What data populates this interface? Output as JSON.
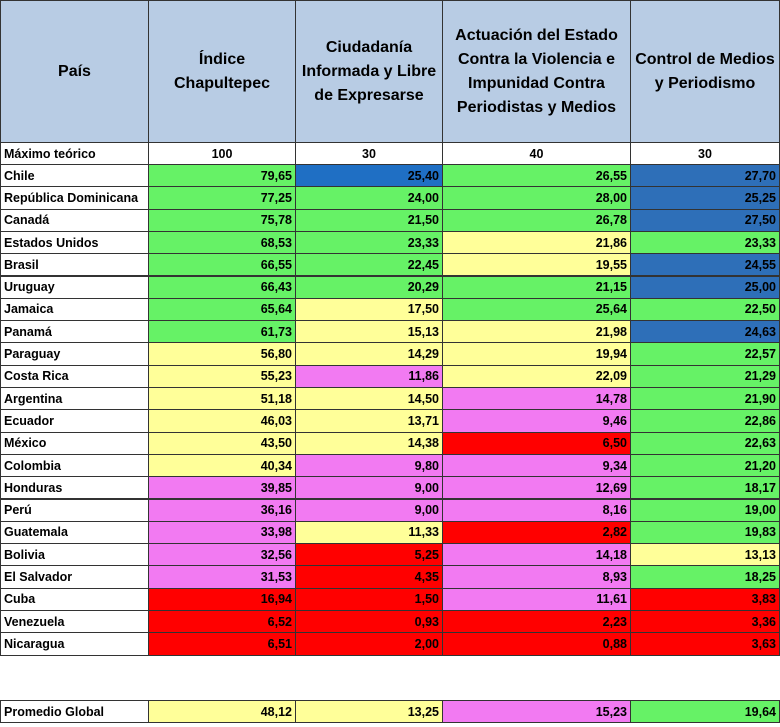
{
  "table": {
    "header": [
      "País",
      "Índice Chapultepec",
      "Ciudadanía Informada y Libre de Expresarse",
      "Actuación del Estado Contra la Violencia e Impunidad Contra Periodistas y Medios",
      "Control de Medios y Periodismo"
    ],
    "max_row": [
      "Máximo teórico",
      "100",
      "30",
      "40",
      "30"
    ],
    "rows": [
      [
        "Chile",
        "79,65",
        "25,40",
        "26,55",
        "27,70"
      ],
      [
        "República Dominicana",
        "77,25",
        "24,00",
        "28,00",
        "25,25"
      ],
      [
        "Canadá",
        "75,78",
        "21,50",
        "26,78",
        "27,50"
      ],
      [
        "Estados Unidos",
        "68,53",
        "23,33",
        "21,86",
        "23,33"
      ],
      [
        "Brasil",
        "66,55",
        "22,45",
        "19,55",
        "24,55"
      ],
      [
        "Uruguay",
        "66,43",
        "20,29",
        "21,15",
        "25,00"
      ],
      [
        "Jamaica",
        "65,64",
        "17,50",
        "25,64",
        "22,50"
      ],
      [
        "Panamá",
        "61,73",
        "15,13",
        "21,98",
        "24,63"
      ],
      [
        "Paraguay",
        "56,80",
        "14,29",
        "19,94",
        "22,57"
      ],
      [
        "Costa Rica",
        "55,23",
        "11,86",
        "22,09",
        "21,29"
      ],
      [
        "Argentina",
        "51,18",
        "14,50",
        "14,78",
        "21,90"
      ],
      [
        "Ecuador",
        "46,03",
        "13,71",
        "9,46",
        "22,86"
      ],
      [
        "México",
        "43,50",
        "14,38",
        "6,50",
        "22,63"
      ],
      [
        "Colombia",
        "40,34",
        "9,80",
        "9,34",
        "21,20"
      ],
      [
        "Honduras",
        "39,85",
        "9,00",
        "12,69",
        "18,17"
      ],
      [
        "Perú",
        "36,16",
        "9,00",
        "8,16",
        "19,00"
      ],
      [
        "Guatemala",
        "33,98",
        "11,33",
        "2,82",
        "19,83"
      ],
      [
        "Bolivia",
        "32,56",
        "5,25",
        "14,18",
        "13,13"
      ],
      [
        "El Salvador",
        "31,53",
        "4,35",
        "8,93",
        "18,25"
      ],
      [
        "Cuba",
        "16,94",
        "1,50",
        "11,61",
        "3,83"
      ],
      [
        "Venezuela",
        "6,52",
        "0,93",
        "2,23",
        "3,36"
      ],
      [
        "Nicaragua",
        "6,51",
        "2,00",
        "0,88",
        "3,63"
      ]
    ],
    "fills": [
      [
        "#66f266",
        "#1f6fc4",
        "#66f266",
        "#2e6fb8"
      ],
      [
        "#66f266",
        "#66f266",
        "#66f266",
        "#2e6fb8"
      ],
      [
        "#66f266",
        "#66f266",
        "#66f266",
        "#2e6fb8"
      ],
      [
        "#66f266",
        "#66f266",
        "#ffff99",
        "#66f266"
      ],
      [
        "#66f266",
        "#66f266",
        "#ffff99",
        "#2e6fb8"
      ],
      [
        "#66f266",
        "#66f266",
        "#66f266",
        "#2e6fb8"
      ],
      [
        "#66f266",
        "#ffff99",
        "#66f266",
        "#66f266"
      ],
      [
        "#66f266",
        "#ffff99",
        "#ffff99",
        "#2e6fb8"
      ],
      [
        "#ffff99",
        "#ffff99",
        "#ffff99",
        "#66f266"
      ],
      [
        "#ffff99",
        "#f27af2",
        "#ffff99",
        "#66f266"
      ],
      [
        "#ffff99",
        "#ffff99",
        "#f27af2",
        "#66f266"
      ],
      [
        "#ffff99",
        "#ffff99",
        "#f27af2",
        "#66f266"
      ],
      [
        "#ffff99",
        "#ffff99",
        "#ff0000",
        "#66f266"
      ],
      [
        "#ffff99",
        "#f27af2",
        "#f27af2",
        "#66f266"
      ],
      [
        "#f27af2",
        "#f27af2",
        "#f27af2",
        "#66f266"
      ],
      [
        "#f27af2",
        "#f27af2",
        "#f27af2",
        "#66f266"
      ],
      [
        "#f27af2",
        "#ffff99",
        "#ff0000",
        "#66f266"
      ],
      [
        "#f27af2",
        "#ff0000",
        "#f27af2",
        "#ffff99"
      ],
      [
        "#f27af2",
        "#ff0000",
        "#f27af2",
        "#66f266"
      ],
      [
        "#ff0000",
        "#ff0000",
        "#f27af2",
        "#ff0000"
      ],
      [
        "#ff0000",
        "#ff0000",
        "#ff0000",
        "#ff0000"
      ],
      [
        "#ff0000",
        "#ff0000",
        "#ff0000",
        "#ff0000"
      ]
    ],
    "average_row": [
      "Promedio Global",
      "48,12",
      "13,25",
      "15,23",
      "19,64"
    ],
    "average_fills": [
      "#ffff99",
      "#ffff99",
      "#f27af2",
      "#66f266"
    ]
  }
}
